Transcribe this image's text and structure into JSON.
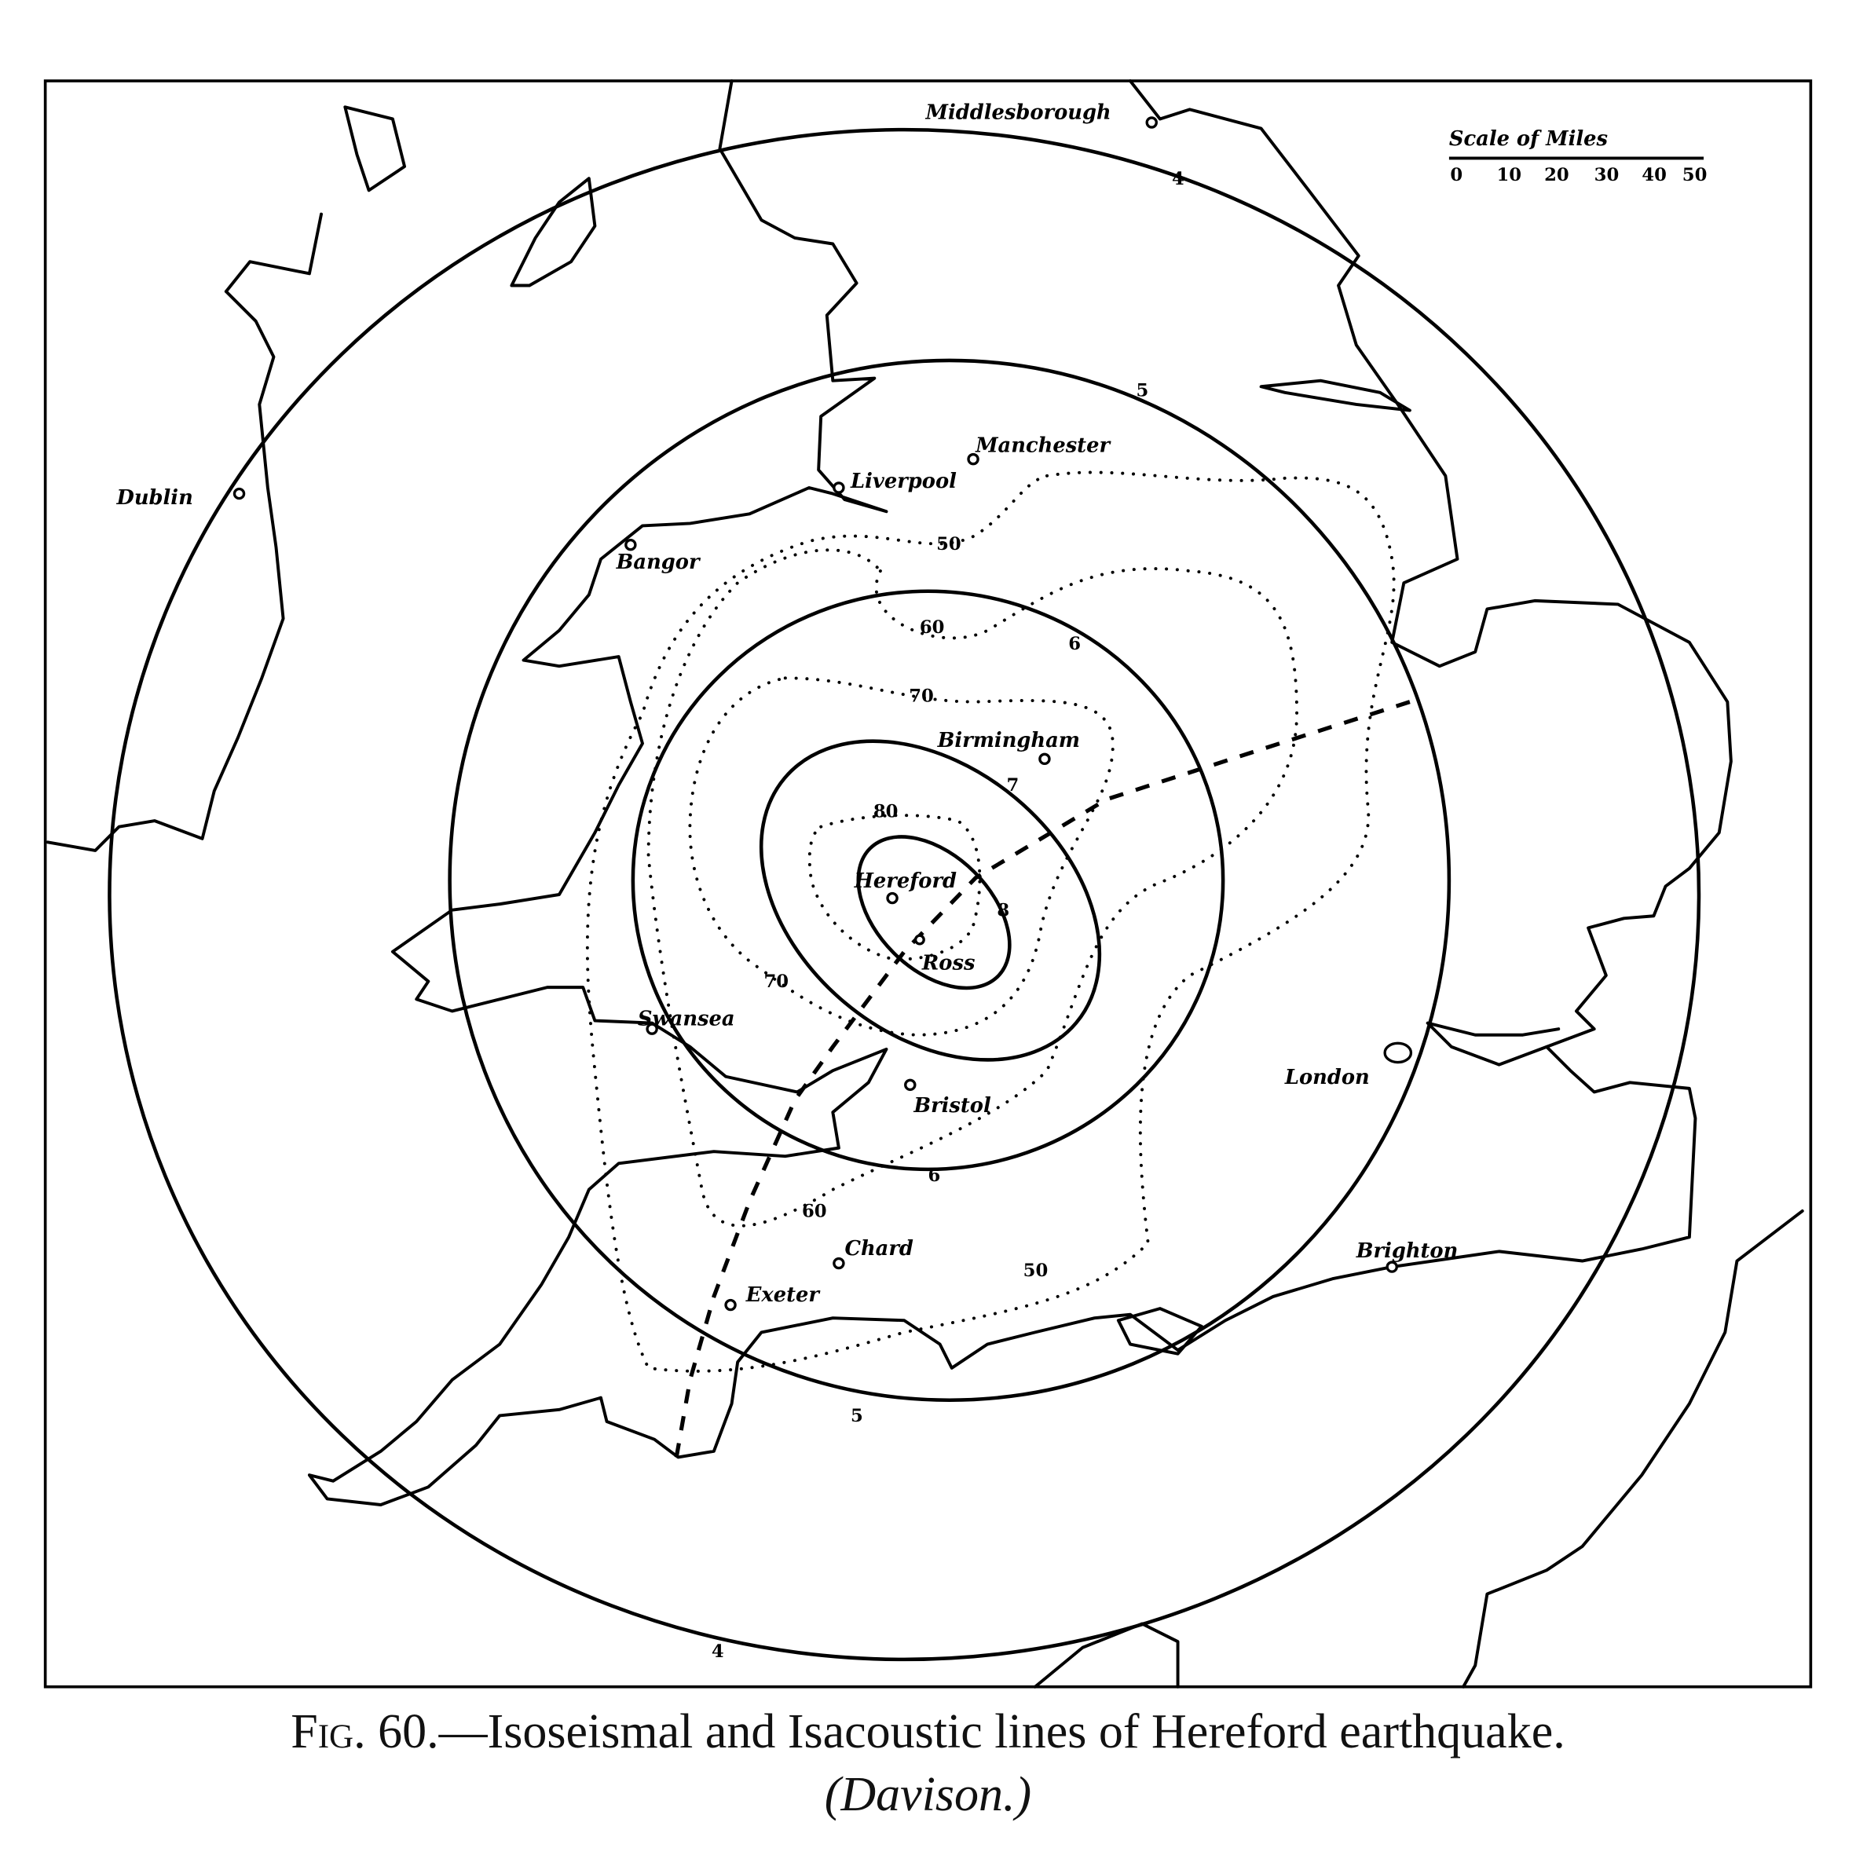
{
  "figure": {
    "caption_fig": "Fig. 60.",
    "caption_text": "—Isoseismal and Isacoustic lines of Hereford earthquake.",
    "caption_credit": "(Davison.)"
  },
  "scale": {
    "title": "Scale of Miles",
    "ticks": [
      "0",
      "10",
      "20",
      "30",
      "40",
      "50"
    ]
  },
  "cities": {
    "middlesborough": "Middlesborough",
    "manchester": "Manchester",
    "liverpool": "Liverpool",
    "dublin": "Dublin",
    "bangor": "Bangor",
    "birmingham": "Birmingham",
    "hereford": "Hereford",
    "ross": "Ross",
    "swansea": "Swansea",
    "bristol": "Bristol",
    "london": "London",
    "chard": "Chard",
    "exeter": "Exeter",
    "brighton": "Brighton"
  },
  "isoseismals": {
    "i4_north": "4",
    "i4_south": "4",
    "i5_north": "5",
    "i5_south": "5",
    "i6_north": "6",
    "i6_south": "6",
    "i7": "7",
    "i8": "8"
  },
  "isacoustics": {
    "a50_north": "50",
    "a50_south": "50",
    "a60_north": "60",
    "a60_south": "60",
    "a70_north": "70",
    "a70_south": "70",
    "a80": "80"
  }
}
